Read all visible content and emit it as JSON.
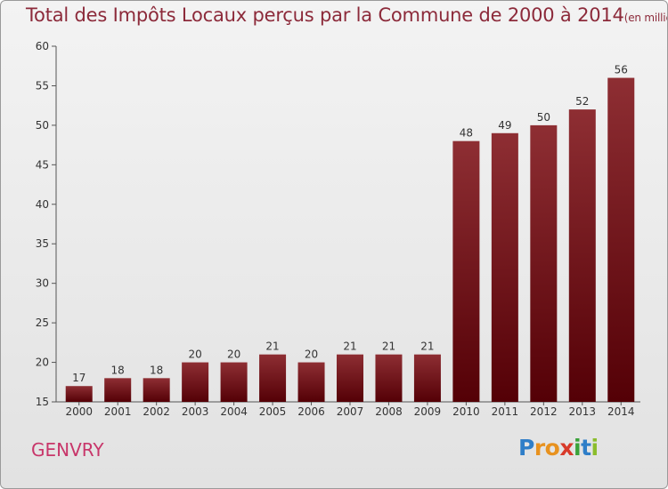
{
  "header": {
    "title": "Total des Impôts Locaux perçus par la Commune de 2000 à 2014",
    "unit": "(en milliers d'€)"
  },
  "footer": {
    "commune": "GENVRY",
    "logo": [
      "P",
      "r",
      "o",
      "x",
      "i",
      "t",
      "i"
    ]
  },
  "colors": {
    "bar": "#6b1218",
    "bar_light": "#8e2e33",
    "title": "#8c2a3a",
    "commune": "#c8366a",
    "logo": [
      "#2f7ec8",
      "#e8921f",
      "#e8921f",
      "#d83a2a",
      "#3aa23a",
      "#2f7ec8",
      "#8bbd2c"
    ]
  },
  "chart_data": {
    "type": "bar",
    "title": "Total des Impôts Locaux perçus par la Commune de 2000 à 2014",
    "categories": [
      "2000",
      "2001",
      "2002",
      "2003",
      "2004",
      "2005",
      "2006",
      "2007",
      "2008",
      "2009",
      "2010",
      "2011",
      "2012",
      "2013",
      "2014"
    ],
    "values": [
      17,
      18,
      18,
      20,
      20,
      21,
      20,
      21,
      21,
      21,
      48,
      49,
      50,
      52,
      56
    ],
    "ylim": [
      15,
      60
    ],
    "yticks": [
      15,
      20,
      25,
      30,
      35,
      40,
      45,
      50,
      55,
      60
    ],
    "grid": false,
    "xlabel": "",
    "ylabel": ""
  }
}
